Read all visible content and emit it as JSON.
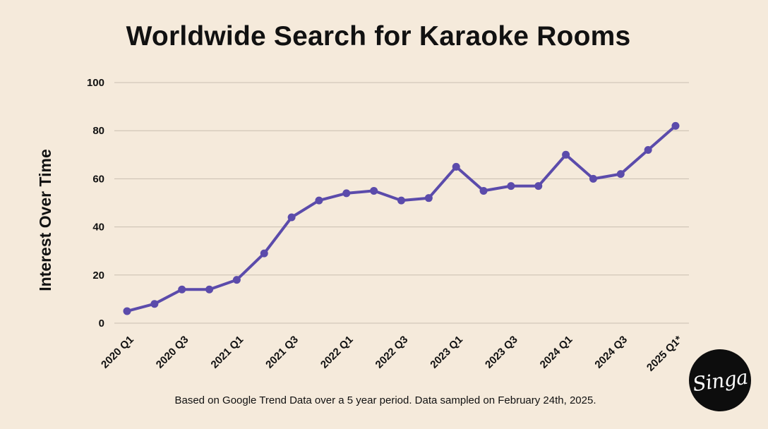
{
  "chart_data": {
    "type": "line",
    "title": "Worldwide Search for Karaoke Rooms",
    "xlabel": "",
    "ylabel": "Interest Over Time",
    "ylim": [
      0,
      100
    ],
    "yticks": [
      0,
      20,
      40,
      60,
      80,
      100
    ],
    "grid": true,
    "categories": [
      "2020 Q1",
      "2020 Q2",
      "2020 Q3",
      "2020 Q4",
      "2021 Q1",
      "2021 Q2",
      "2021 Q3",
      "2021 Q4",
      "2022 Q1",
      "2022 Q2",
      "2022 Q3",
      "2022 Q4",
      "2023 Q1",
      "2023 Q2",
      "2023 Q3",
      "2023 Q4",
      "2024 Q1",
      "2024 Q2",
      "2024 Q3",
      "2024 Q4",
      "2025 Q1*"
    ],
    "tick_labels": [
      "2020 Q1",
      "2020 Q3",
      "2021 Q1",
      "2021 Q3",
      "2022 Q1",
      "2022 Q3",
      "2023 Q1",
      "2023 Q3",
      "2024 Q1",
      "2024 Q3",
      "2025 Q1*"
    ],
    "series": [
      {
        "color": "#5b4bab",
        "values": [
          5,
          8,
          14,
          14,
          18,
          29,
          44,
          51,
          54,
          55,
          51,
          52,
          65,
          55,
          57,
          57,
          70,
          60,
          62,
          72,
          82
        ]
      }
    ]
  },
  "footnote": "Based on Google Trend Data over a 5 year period. Data sampled on February 24th, 2025.",
  "logo": {
    "text": "Singa"
  },
  "colors": {
    "background": "#f5eadb",
    "line": "#5b4bab",
    "grid": "#c9beb0"
  }
}
